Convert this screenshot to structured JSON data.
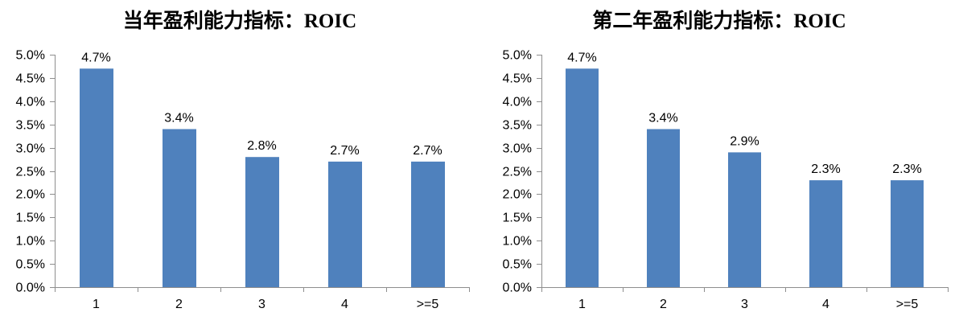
{
  "page": {
    "background": "#FFFFFF"
  },
  "chart_data": [
    {
      "type": "bar",
      "title": "当年盈利能力指标：ROIC",
      "categories": [
        "1",
        "2",
        "3",
        "4",
        ">=5"
      ],
      "values": [
        4.7,
        3.4,
        2.8,
        2.7,
        2.7
      ],
      "value_labels": [
        "4.7%",
        "3.4%",
        "2.8%",
        "2.7%",
        "2.7%"
      ],
      "xlabel": "",
      "ylabel": "",
      "ylim": [
        0,
        5
      ],
      "ytick_step": 0.5,
      "ytick_labels": [
        "0.0%",
        "0.5%",
        "1.0%",
        "1.5%",
        "2.0%",
        "2.5%",
        "3.0%",
        "3.5%",
        "4.0%",
        "4.5%",
        "5.0%"
      ],
      "grid": false,
      "legend": false,
      "bar_color": "#4F81BD",
      "axis_color": "#8E8E8E",
      "text_color": "#000000"
    },
    {
      "type": "bar",
      "title": "第二年盈利能力指标：ROIC",
      "categories": [
        "1",
        "2",
        "3",
        "4",
        ">=5"
      ],
      "values": [
        4.7,
        3.4,
        2.9,
        2.3,
        2.3
      ],
      "value_labels": [
        "4.7%",
        "3.4%",
        "2.9%",
        "2.3%",
        "2.3%"
      ],
      "xlabel": "",
      "ylabel": "",
      "ylim": [
        0,
        5
      ],
      "ytick_step": 0.5,
      "ytick_labels": [
        "0.0%",
        "0.5%",
        "1.0%",
        "1.5%",
        "2.0%",
        "2.5%",
        "3.0%",
        "3.5%",
        "4.0%",
        "4.5%",
        "5.0%"
      ],
      "grid": false,
      "legend": false,
      "bar_color": "#4F81BD",
      "axis_color": "#8E8E8E",
      "text_color": "#000000"
    }
  ]
}
